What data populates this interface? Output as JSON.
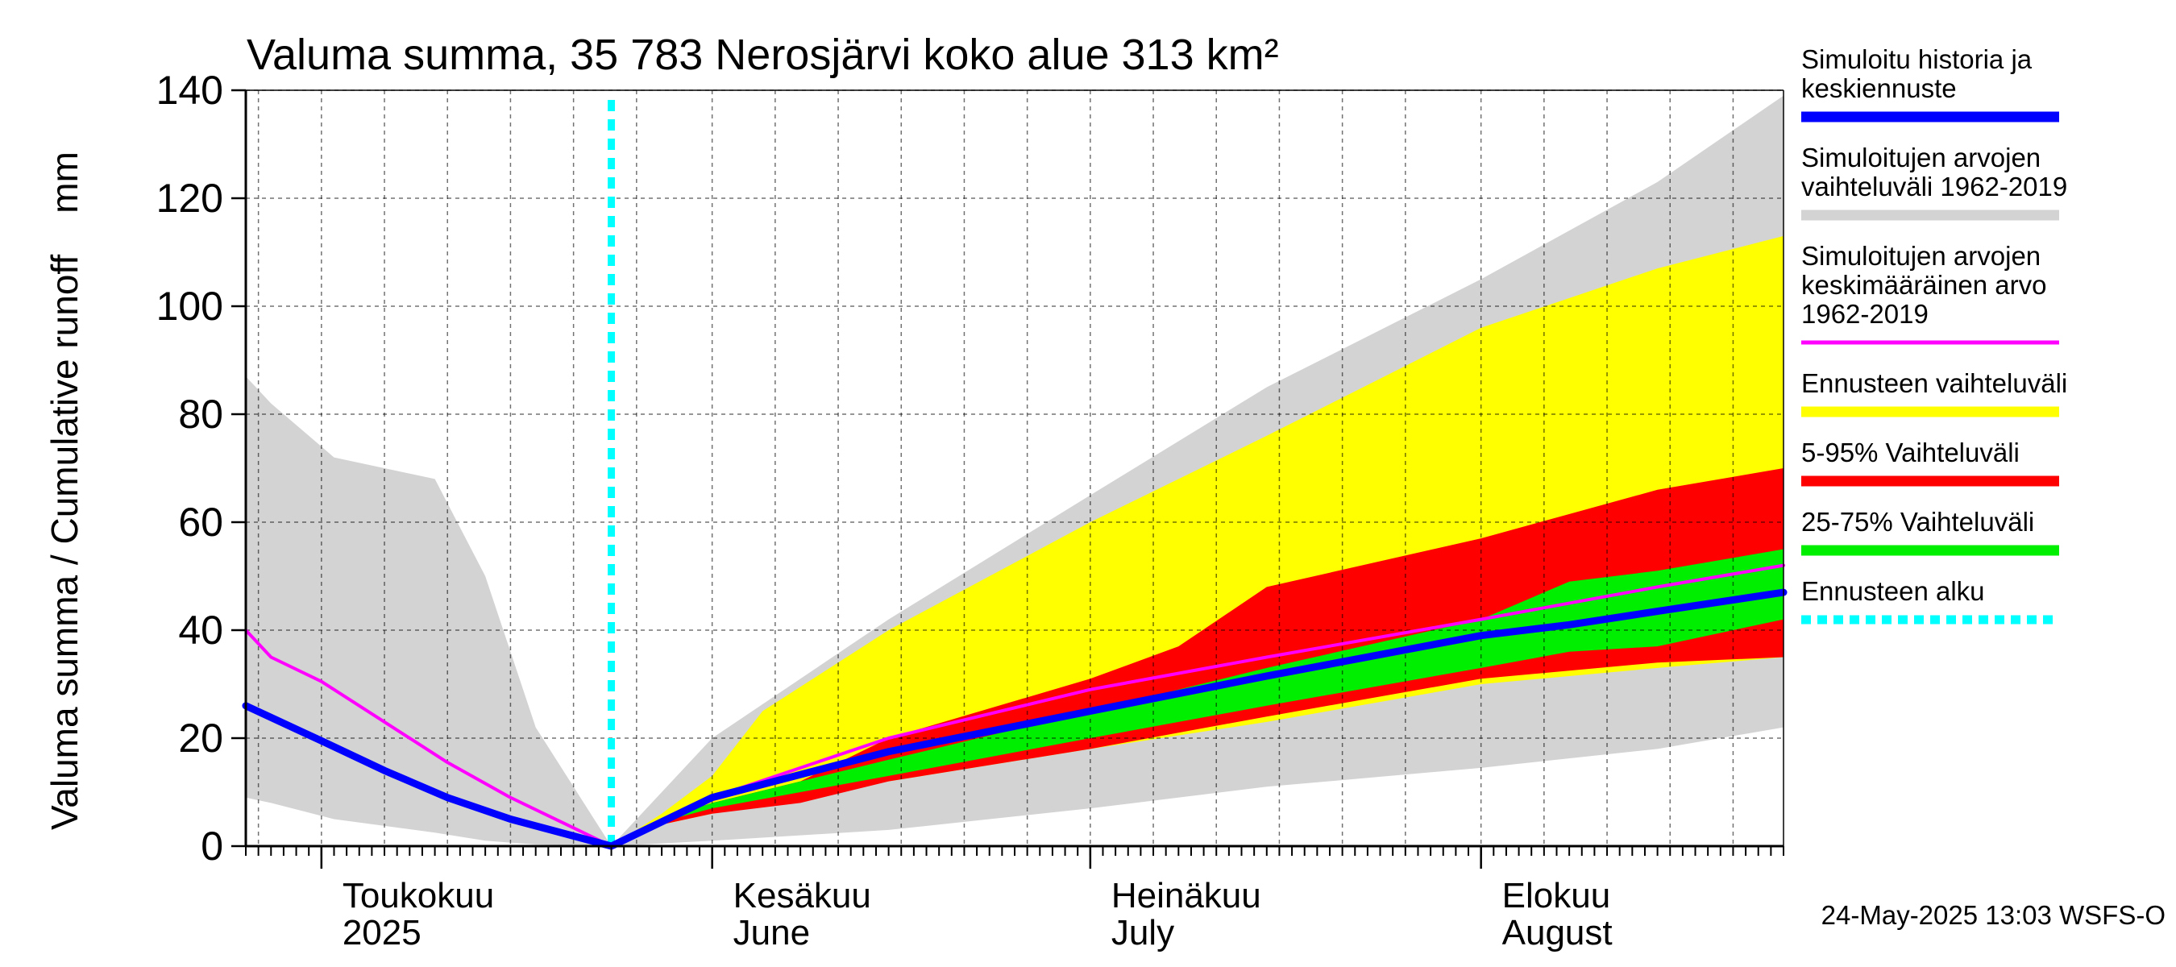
{
  "chart_data": {
    "type": "area",
    "title": "Valuma summa, 35 783 Nerosjärvi koko alue 313 km²",
    "ylabel": "Valuma summa / Cumulative runoff    mm",
    "ylim": [
      0,
      140
    ],
    "yticks": [
      0,
      20,
      40,
      60,
      80,
      100,
      120,
      140
    ],
    "xlim": [
      "2025-04-25",
      "2025-08-25"
    ],
    "grid": true,
    "legend_position": "right",
    "month_labels": [
      {
        "date": "2025-05-01",
        "line1": "Toukokuu",
        "line2": "2025"
      },
      {
        "date": "2025-06-01",
        "line1": "Kesäkuu",
        "line2": "June"
      },
      {
        "date": "2025-07-01",
        "line1": "Heinäkuu",
        "line2": "July"
      },
      {
        "date": "2025-08-01",
        "line1": "Elokuu",
        "line2": "August"
      }
    ],
    "forecast_start": "2025-05-24",
    "series": [
      {
        "name": "Simuloitujen arvojen vaihteluväli 1962-2019",
        "kind": "band",
        "color": "#d3d3d3",
        "x": [
          "2025-04-25",
          "2025-04-27",
          "2025-05-02",
          "2025-05-10",
          "2025-05-14",
          "2025-05-18",
          "2025-05-24",
          "2025-06-01",
          "2025-06-15",
          "2025-07-01",
          "2025-07-15",
          "2025-08-01",
          "2025-08-15",
          "2025-08-25"
        ],
        "upper": [
          87,
          82,
          72,
          68,
          50,
          22,
          0,
          20,
          42,
          65,
          85,
          105,
          123,
          139
        ],
        "lower": [
          9,
          8,
          5,
          2.5,
          1,
          0.3,
          0,
          1,
          3,
          7,
          11,
          14.5,
          18,
          22
        ]
      },
      {
        "name": "Ennusteen vaihteluväli",
        "kind": "band",
        "color": "#ffff00",
        "x": [
          "2025-05-24",
          "2025-05-28",
          "2025-06-01",
          "2025-06-05",
          "2025-06-15",
          "2025-07-01",
          "2025-07-15",
          "2025-08-01",
          "2025-08-15",
          "2025-08-25"
        ],
        "upper": [
          0,
          6,
          13,
          25,
          40,
          60,
          76,
          96,
          107,
          113
        ],
        "lower": [
          0,
          4,
          6,
          8,
          12,
          18,
          23,
          30,
          33,
          35
        ]
      },
      {
        "name": "5-95% Vaihteluväli",
        "kind": "band",
        "color": "#ff0000",
        "x": [
          "2025-05-24",
          "2025-05-28",
          "2025-06-01",
          "2025-06-08",
          "2025-06-15",
          "2025-07-01",
          "2025-07-08",
          "2025-07-15",
          "2025-08-01",
          "2025-08-15",
          "2025-08-25"
        ],
        "upper": [
          0,
          5,
          8,
          12,
          20,
          31,
          37,
          48,
          57,
          66,
          70
        ],
        "lower": [
          0,
          4,
          6,
          8,
          12,
          18,
          21,
          24,
          31,
          34,
          35
        ]
      },
      {
        "name": "25-75% Vaihteluväli",
        "kind": "band",
        "color": "#00ee00",
        "x": [
          "2025-05-24",
          "2025-05-28",
          "2025-06-01",
          "2025-06-15",
          "2025-07-01",
          "2025-07-15",
          "2025-08-01",
          "2025-08-08",
          "2025-08-15",
          "2025-08-25"
        ],
        "upper": [
          0,
          5,
          8,
          16,
          25,
          33,
          42,
          49,
          51,
          55
        ],
        "lower": [
          0,
          4.5,
          7,
          13,
          20,
          26,
          33,
          36,
          37,
          42
        ]
      },
      {
        "name": "Simuloitujen arvojen keskimääräinen arvo 1962-2019",
        "kind": "line",
        "color": "#ff00ff",
        "x": [
          "2025-04-25",
          "2025-04-27",
          "2025-05-01",
          "2025-05-06",
          "2025-05-11",
          "2025-05-16",
          "2025-05-20",
          "2025-05-24",
          "2025-06-01",
          "2025-06-15",
          "2025-07-01",
          "2025-07-15",
          "2025-08-01",
          "2025-08-15",
          "2025-08-25"
        ],
        "y": [
          40,
          35,
          30.5,
          23,
          15.5,
          9,
          4.5,
          0,
          9,
          20,
          29,
          35,
          42,
          48,
          52
        ]
      },
      {
        "name": "Simuloitu historia ja keskiennuste",
        "kind": "line",
        "color": "#0000ff",
        "x": [
          "2025-04-25",
          "2025-05-01",
          "2025-05-06",
          "2025-05-11",
          "2025-05-16",
          "2025-05-20",
          "2025-05-24",
          "2025-06-01",
          "2025-06-15",
          "2025-07-01",
          "2025-07-15",
          "2025-08-01",
          "2025-08-08",
          "2025-08-15",
          "2025-08-25"
        ],
        "y": [
          26,
          19.5,
          14,
          9,
          5,
          2.5,
          0,
          9,
          17.5,
          25,
          31.5,
          39,
          41,
          43.5,
          47
        ]
      }
    ]
  },
  "legend": [
    {
      "lines": [
        "Simuloitu historia ja",
        "keskiennuste"
      ],
      "color": "#0000ff",
      "style": "solid"
    },
    {
      "lines": [
        "Simuloitujen arvojen",
        "vaihteluväli 1962-2019"
      ],
      "color": "#d3d3d3",
      "style": "solid"
    },
    {
      "lines": [
        "Simuloitujen arvojen",
        "keskimääräinen arvo",
        "   1962-2019"
      ],
      "color": "#ff00ff",
      "style": "thin"
    },
    {
      "lines": [
        "Ennusteen vaihteluväli"
      ],
      "color": "#ffff00",
      "style": "solid"
    },
    {
      "lines": [
        "5-95% Vaihteluväli"
      ],
      "color": "#ff0000",
      "style": "solid"
    },
    {
      "lines": [
        "25-75% Vaihteluväli"
      ],
      "color": "#00ee00",
      "style": "solid"
    },
    {
      "lines": [
        "Ennusteen alku"
      ],
      "color": "#00ffff",
      "style": "dotted"
    }
  ],
  "footer": "24-May-2025 13:03 WSFS-O"
}
